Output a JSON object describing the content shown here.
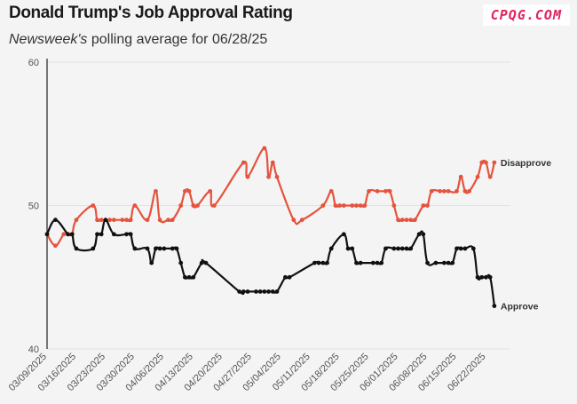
{
  "header": {
    "title": "Donald Trump's Job Approval Rating",
    "subtitle_em": "Newsweek's",
    "subtitle_rest": " polling average for 06/28/25",
    "watermark": "CPQG.COM"
  },
  "colors": {
    "approve": "#111111",
    "disapprove": "#e5533d",
    "grid": "#e2e2e2"
  },
  "chart_data": {
    "type": "line",
    "title": "Donald Trump's Job Approval Rating",
    "subtitle": "Newsweek's polling average for 06/28/25",
    "xlabel": "",
    "ylabel": "",
    "ylim": [
      40,
      60
    ],
    "yticks": [
      40,
      50,
      60
    ],
    "x_tick_labels": [
      "03/09/2025",
      "03/16/2025",
      "03/23/2025",
      "03/30/2025",
      "04/06/2025",
      "04/13/2025",
      "04/20/2025",
      "04/27/2025",
      "05/04/2025",
      "05/11/2025",
      "05/18/2025",
      "05/25/2025",
      "06/01/2025",
      "06/08/2025",
      "06/15/2025",
      "06/22/2025"
    ],
    "x_range_days": [
      0,
      110
    ],
    "series": [
      {
        "name": "Disapprove",
        "label": "Disapprove",
        "points": [
          [
            0,
            48.0
          ],
          [
            2,
            47.2
          ],
          [
            4,
            48.0
          ],
          [
            5,
            48.0
          ],
          [
            6,
            48.0
          ],
          [
            7,
            49.0
          ],
          [
            11,
            50.0
          ],
          [
            12,
            49.0
          ],
          [
            13,
            49.0
          ],
          [
            15,
            49.0
          ],
          [
            16,
            49.0
          ],
          [
            18,
            49.0
          ],
          [
            19,
            49.0
          ],
          [
            20,
            49.0
          ],
          [
            21,
            50.0
          ],
          [
            24,
            49.0
          ],
          [
            26,
            51.0
          ],
          [
            27,
            49.0
          ],
          [
            29,
            49.0
          ],
          [
            30,
            49.0
          ],
          [
            32,
            50.0
          ],
          [
            33,
            51.0
          ],
          [
            34,
            51.0
          ],
          [
            35,
            50.0
          ],
          [
            36,
            50.0
          ],
          [
            39,
            51.0
          ],
          [
            40,
            50.0
          ],
          [
            47,
            53.0
          ],
          [
            48,
            52.0
          ],
          [
            52,
            54.0
          ],
          [
            53,
            52.0
          ],
          [
            54,
            53.0
          ],
          [
            55,
            52.0
          ],
          [
            59,
            49.0
          ],
          [
            61,
            49.0
          ],
          [
            66,
            50.0
          ],
          [
            68,
            51.0
          ],
          [
            69,
            50.0
          ],
          [
            70,
            50.0
          ],
          [
            71,
            50.0
          ],
          [
            73,
            50.0
          ],
          [
            74,
            50.0
          ],
          [
            75,
            50.0
          ],
          [
            76,
            50.0
          ],
          [
            77,
            51.0
          ],
          [
            79,
            51.0
          ],
          [
            81,
            51.0
          ],
          [
            82,
            51.0
          ],
          [
            83,
            50.0
          ],
          [
            84,
            49.0
          ],
          [
            85,
            49.0
          ],
          [
            86,
            49.0
          ],
          [
            87,
            49.0
          ],
          [
            88,
            49.0
          ],
          [
            90,
            50.0
          ],
          [
            91,
            50.0
          ],
          [
            92,
            51.0
          ],
          [
            94,
            51.0
          ],
          [
            95,
            51.0
          ],
          [
            96,
            51.0
          ],
          [
            98,
            51.0
          ],
          [
            99,
            52.0
          ],
          [
            100,
            51.0
          ],
          [
            101,
            51.0
          ],
          [
            103,
            52.0
          ],
          [
            104,
            53.0
          ],
          [
            105,
            53.0
          ],
          [
            106,
            52.0
          ],
          [
            107,
            53.0
          ]
        ]
      },
      {
        "name": "Approve",
        "label": "Approve",
        "points": [
          [
            0,
            48.0
          ],
          [
            2,
            49.0
          ],
          [
            5,
            48.0
          ],
          [
            6,
            48.0
          ],
          [
            7,
            47.0
          ],
          [
            11,
            47.0
          ],
          [
            12,
            48.0
          ],
          [
            13,
            48.0
          ],
          [
            14,
            49.0
          ],
          [
            16,
            48.0
          ],
          [
            19,
            48.0
          ],
          [
            20,
            48.0
          ],
          [
            21,
            47.0
          ],
          [
            24,
            47.0
          ],
          [
            25,
            46.0
          ],
          [
            26,
            47.0
          ],
          [
            27,
            47.0
          ],
          [
            28,
            47.0
          ],
          [
            30,
            47.0
          ],
          [
            31,
            47.0
          ],
          [
            32,
            46.0
          ],
          [
            33,
            45.0
          ],
          [
            34,
            45.0
          ],
          [
            35,
            45.0
          ],
          [
            37,
            46.0
          ],
          [
            38,
            46.0
          ],
          [
            46,
            44.0
          ],
          [
            47,
            44.0
          ],
          [
            48,
            44.0
          ],
          [
            50,
            44.0
          ],
          [
            51,
            44.0
          ],
          [
            52,
            44.0
          ],
          [
            53,
            44.0
          ],
          [
            54,
            44.0
          ],
          [
            55,
            44.0
          ],
          [
            57,
            45.0
          ],
          [
            58,
            45.0
          ],
          [
            64,
            46.0
          ],
          [
            65,
            46.0
          ],
          [
            66,
            46.0
          ],
          [
            67,
            46.0
          ],
          [
            68,
            47.0
          ],
          [
            71,
            48.0
          ],
          [
            72,
            47.0
          ],
          [
            73,
            47.0
          ],
          [
            74,
            46.0
          ],
          [
            75,
            46.0
          ],
          [
            78,
            46.0
          ],
          [
            79,
            46.0
          ],
          [
            80,
            46.0
          ],
          [
            81,
            47.0
          ],
          [
            83,
            47.0
          ],
          [
            84,
            47.0
          ],
          [
            85,
            47.0
          ],
          [
            86,
            47.0
          ],
          [
            87,
            47.0
          ],
          [
            89,
            48.0
          ],
          [
            90,
            48.0
          ],
          [
            91,
            46.0
          ],
          [
            93,
            46.0
          ],
          [
            95,
            46.0
          ],
          [
            96,
            46.0
          ],
          [
            97,
            46.0
          ],
          [
            98,
            47.0
          ],
          [
            99,
            47.0
          ],
          [
            100,
            47.0
          ],
          [
            102,
            47.0
          ],
          [
            103,
            45.0
          ],
          [
            104,
            45.0
          ],
          [
            105,
            45.0
          ],
          [
            106,
            45.0
          ],
          [
            107,
            43.0
          ]
        ]
      }
    ]
  }
}
